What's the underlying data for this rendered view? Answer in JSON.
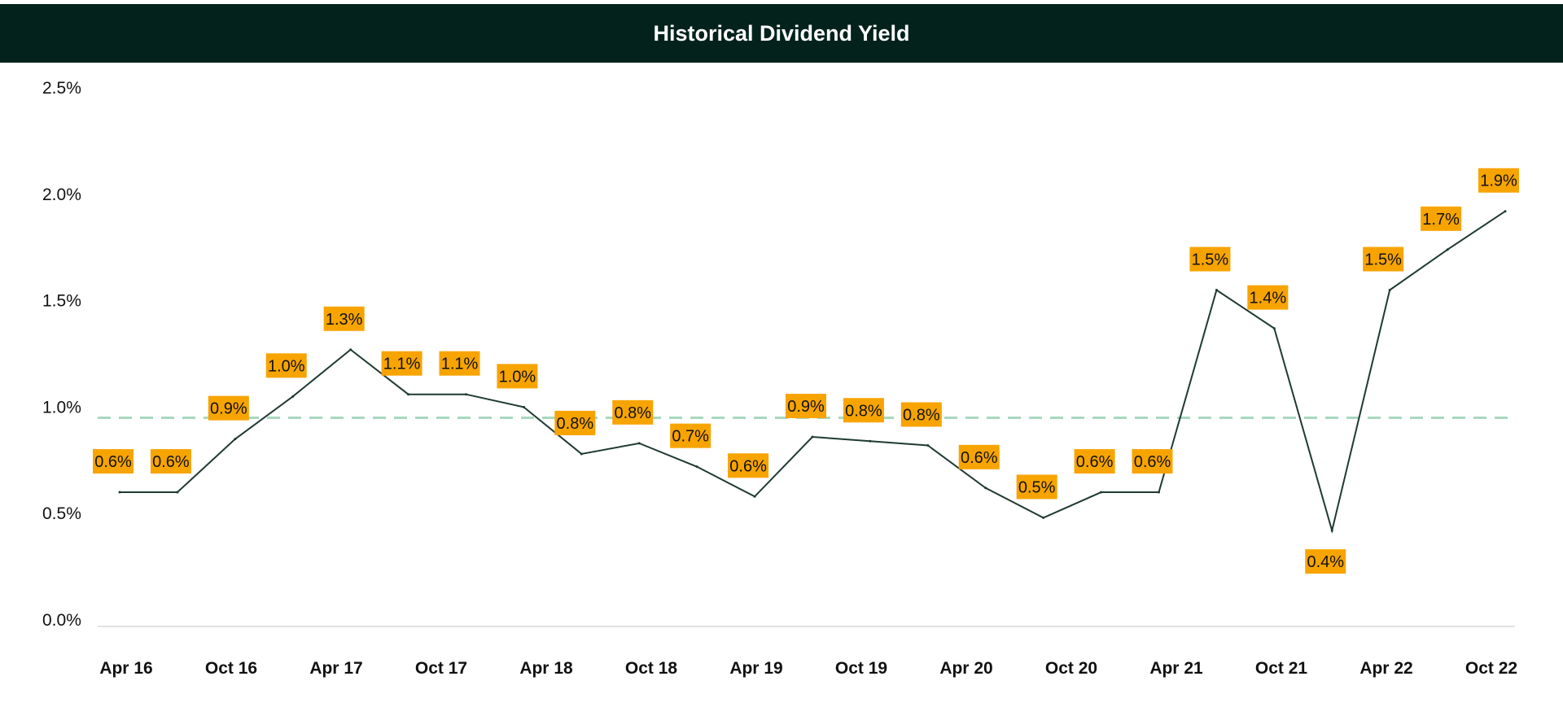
{
  "chart_data": {
    "type": "line",
    "title": "Historical Dividend Yield",
    "xlabel": "",
    "ylabel": "",
    "ylim": [
      0,
      2.5
    ],
    "yticks": [
      "0.0%",
      "0.5%",
      "1.0%",
      "1.5%",
      "2.0%",
      "2.5%"
    ],
    "xticks": [
      "Apr 16",
      "Oct 16",
      "Apr 17",
      "Oct 17",
      "Apr 18",
      "Oct 18",
      "Apr 19",
      "Oct 19",
      "Apr 20",
      "Oct 20",
      "Apr 21",
      "Oct 21",
      "Apr 22",
      "Oct 22"
    ],
    "grid": false,
    "series": [
      {
        "name": "Dividend Yield",
        "values": [
          0.6,
          0.6,
          0.85,
          1.05,
          1.27,
          1.06,
          1.06,
          1.0,
          0.78,
          0.83,
          0.72,
          0.58,
          0.86,
          0.84,
          0.82,
          0.62,
          0.48,
          0.6,
          0.6,
          1.55,
          1.37,
          0.42,
          1.55,
          1.74,
          1.92
        ],
        "labels": [
          "0.6%",
          "0.6%",
          "0.9%",
          "1.0%",
          "1.3%",
          "1.1%",
          "1.1%",
          "1.0%",
          "0.8%",
          "0.8%",
          "0.7%",
          "0.6%",
          "0.9%",
          "0.8%",
          "0.8%",
          "0.6%",
          "0.5%",
          "0.6%",
          "0.6%",
          "1.5%",
          "1.4%",
          "0.4%",
          "1.5%",
          "1.7%",
          "1.9%"
        ]
      }
    ],
    "average_line": 0.95,
    "colors": {
      "line": "#1f3a33",
      "label_bg": "#f7a400",
      "average": "#a8d8c0",
      "header": "#02221b"
    }
  }
}
